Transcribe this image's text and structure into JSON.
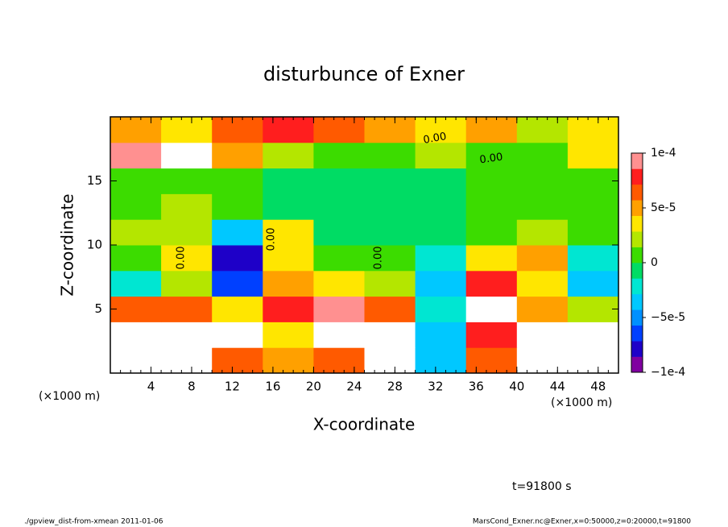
{
  "chart_data": {
    "type": "heatmap",
    "title": "disturbunce of Exner",
    "x_label": "X-coordinate",
    "y_label": "Z-coordinate",
    "x_unit_labels": [
      "(×1000 m)",
      "(×1000 m)"
    ],
    "xlim": [
      0,
      50
    ],
    "ylim": [
      0,
      20
    ],
    "xticks": [
      4,
      8,
      12,
      16,
      20,
      24,
      28,
      32,
      36,
      40,
      44,
      48
    ],
    "yticks": [
      5,
      10,
      15
    ],
    "x": [
      2.5,
      7.5,
      12.5,
      17.5,
      22.5,
      27.5,
      32.5,
      37.5,
      42.5,
      47.5
    ],
    "y": [
      1,
      3,
      5,
      7,
      9,
      11,
      13,
      15,
      17,
      19
    ],
    "z": [
      [
        0.00011,
        0.00011,
        7e-05,
        5e-05,
        6e-05,
        0.00012,
        -3e-05,
        7e-05,
        0.00012,
        0.00011
      ],
      [
        0.00012,
        0.00012,
        0.00011,
        4e-05,
        0.00011,
        0.00013,
        -4e-05,
        8e-05,
        0.00011,
        0.00012
      ],
      [
        7e-05,
        6e-05,
        3e-05,
        8e-05,
        9e-05,
        6e-05,
        -2e-05,
        0.00011,
        5e-05,
        2e-05
      ],
      [
        -2e-05,
        2e-05,
        -6e-05,
        5e-05,
        3e-05,
        2e-05,
        -3e-05,
        8e-05,
        4e-05,
        -3e-05
      ],
      [
        0,
        3e-05,
        -8e-05,
        4e-05,
        0,
        1e-05,
        -2e-05,
        3e-05,
        5e-05,
        -2e-05
      ],
      [
        2e-05,
        2e-05,
        -3e-05,
        3e-05,
        -1e-05,
        -1e-05,
        -1e-05,
        1e-05,
        2e-05,
        0
      ],
      [
        1e-05,
        2e-05,
        1e-05,
        -1e-05,
        -1e-05,
        -1e-05,
        -1e-05,
        1e-05,
        1e-05,
        1e-05
      ],
      [
        1e-05,
        1e-05,
        0,
        -1e-05,
        -1e-05,
        -1e-05,
        -1e-05,
        0,
        0,
        1e-05
      ],
      [
        9e-05,
        0.00012,
        5e-05,
        2e-05,
        1e-05,
        1e-05,
        2e-05,
        1e-05,
        1e-05,
        3e-05
      ],
      [
        5e-05,
        4e-05,
        7e-05,
        8e-05,
        7e-05,
        5e-05,
        3e-05,
        5e-05,
        2e-05,
        4e-05
      ]
    ],
    "zlim": [
      -0.0001,
      0.0001
    ],
    "zticks": [
      {
        "value": -0.0001,
        "label": "−1e-4"
      },
      {
        "value": -5e-05,
        "label": "−5e-5"
      },
      0,
      {
        "value": 5e-05,
        "label": "5e-5"
      },
      {
        "value": 0.0001,
        "label": "1e-4"
      }
    ],
    "colors": [
      "#8000a0",
      "#1e00c8",
      "#0040ff",
      "#0090ff",
      "#00c8ff",
      "#00e6d2",
      "#00dc64",
      "#3cdc00",
      "#b4e600",
      "#ffe600",
      "#ffa000",
      "#ff5a00",
      "#ff1e1e",
      "#ff9090"
    ],
    "out_of_range_color": "#ffffff",
    "contour_labels": [
      "0.00",
      "0.00",
      "0.00",
      "0.00",
      "0.00"
    ],
    "time_annotation": "t=91800 s",
    "footer_left": "./gpview_dist-from-xmean  2011-01-06",
    "footer_right": "MarsCond_Exner.nc@Exner,x=0:50000,z=0:20000,t=91800"
  }
}
